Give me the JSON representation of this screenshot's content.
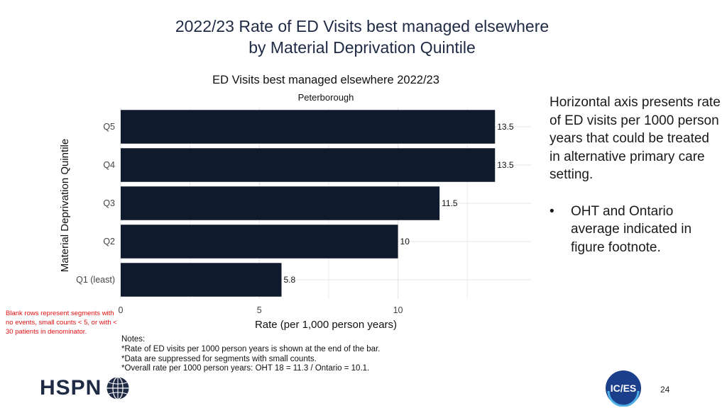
{
  "slide": {
    "title_line1": "2022/23 Rate of ED Visits best managed elsewhere",
    "title_line2": "by Material Deprivation Quintile",
    "side_text": "Horizontal axis presents rate of ED visits per 1000 person years that could be treated in alternative primary care setting.",
    "bullet_char": "•",
    "bullet_text": "OHT and Ontario average indicated in figure footnote.",
    "blank_note": "Blank rows represent segments with no events, small counts < 5, or with < 30 patients in denominator.",
    "notes": [
      "Notes:",
      "*Rate of ED visits per 1000 person years is shown at the end of the bar.",
      "*Data are suppressed for segments with small counts.",
      "*Overall rate per 1000 person years: OHT 18 = 11.3 / Ontario = 10.1."
    ],
    "logo_left": "HSPN",
    "logo_right": "IC/ES",
    "page_number": "24"
  },
  "colors": {
    "bar": "#0f1b2d",
    "title": "#1f2a44",
    "note_red": "#e01010",
    "grid": "#e6e6e6"
  },
  "icons": {
    "hspn_mark": "globe-icon",
    "ices_mark": "ices-circle-logo"
  },
  "chart_data": {
    "type": "bar",
    "orientation": "horizontal",
    "title": "ED Visits best managed elsewhere 2022/23",
    "subtitle": "Peterborough",
    "xlabel": "Rate (per 1,000 person years)",
    "ylabel": "Material Deprivation Quintile",
    "categories": [
      "Q5",
      "Q4",
      "Q3",
      "Q2",
      "Q1 (least)"
    ],
    "values": [
      13.5,
      13.5,
      11.5,
      10,
      5.8
    ],
    "value_labels": [
      "13.5",
      "13.5",
      "11.5",
      "10",
      "5.8"
    ],
    "xticks": [
      0,
      5,
      10
    ],
    "xlim": [
      0,
      14.8
    ],
    "grid": true
  }
}
